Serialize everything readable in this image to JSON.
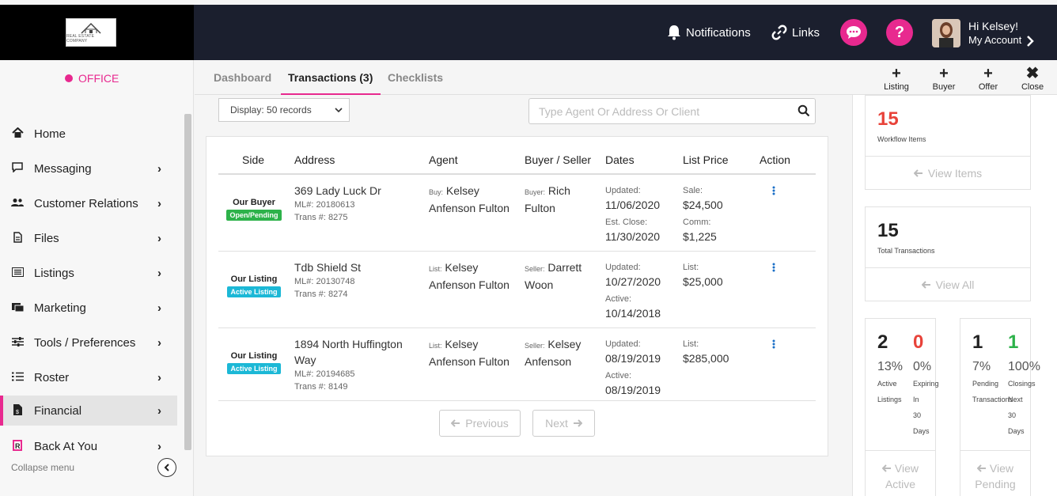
{
  "header": {
    "logo_text": "REAL ESTATE COMPANY",
    "notifications": "Notifications",
    "links": "Links",
    "help_glyph": "?",
    "user_greeting": "Hi Kelsey!",
    "user_account": "My Account"
  },
  "sidebar": {
    "office": "OFFICE",
    "items": [
      {
        "label": "Home",
        "icon": "home-icon"
      },
      {
        "label": "Messaging",
        "icon": "message-icon"
      },
      {
        "label": "Customer Relations",
        "icon": "users-icon"
      },
      {
        "label": "Files",
        "icon": "file-icon"
      },
      {
        "label": "Listings",
        "icon": "list-icon"
      },
      {
        "label": "Marketing",
        "icon": "marketing-icon"
      },
      {
        "label": "Tools / Preferences",
        "icon": "sliders-icon"
      },
      {
        "label": "Roster",
        "icon": "roster-icon"
      },
      {
        "label": "Financial",
        "icon": "financial-icon"
      },
      {
        "label": "Back At You",
        "icon": "bay-icon"
      }
    ],
    "collapse": "Collapse menu"
  },
  "tabs": {
    "dashboard": "Dashboard",
    "transactions": "Transactions (3)",
    "checklists": "Checklists"
  },
  "quick_actions": {
    "listing": "Listing",
    "buyer": "Buyer",
    "offer": "Offer",
    "close": "Close"
  },
  "controls": {
    "display": "Display: 50 records",
    "search_placeholder": "Type Agent Or Address Or Client"
  },
  "table": {
    "headers": {
      "side": "Side",
      "address": "Address",
      "agent": "Agent",
      "buyer_seller": "Buyer / Seller",
      "dates": "Dates",
      "list_price": "List Price",
      "action": "Action"
    },
    "rows": [
      {
        "side": "Our Buyer",
        "status": "Open/Pending",
        "status_color": "#2db24a",
        "address": "369 Lady Luck Dr",
        "ml": "ML#: 20180613",
        "trans": "Trans #: 8275",
        "agent_prefix": "Buy:",
        "agent": "Kelsey Anfenson Fulton",
        "party_prefix": "Buyer:",
        "party": "Rich Fulton",
        "date1_label": "Updated:",
        "date1": "11/06/2020",
        "date2_label": "Est. Close:",
        "date2": "11/30/2020",
        "price1_label": "Sale:",
        "price1": "$24,500",
        "price2_label": "Comm:",
        "price2": "$1,225"
      },
      {
        "side": "Our Listing",
        "status": "Active Listing",
        "status_color": "#1cb8d6",
        "address": "Tdb Shield St",
        "ml": "ML#: 20130748",
        "trans": "Trans #: 8274",
        "agent_prefix": "List:",
        "agent": "Kelsey Anfenson Fulton",
        "party_prefix": "Seller:",
        "party": "Darrett Woon",
        "date1_label": "Updated:",
        "date1": "10/27/2020",
        "date2_label": "Active:",
        "date2": "10/14/2018",
        "price1_label": "List:",
        "price1": "$25,000",
        "price2_label": "",
        "price2": ""
      },
      {
        "side": "Our Listing",
        "status": "Active Listing",
        "status_color": "#1cb8d6",
        "address": "1894 North Huffington Way",
        "ml": "ML#: 20194685",
        "trans": "Trans #: 8149",
        "agent_prefix": "List:",
        "agent": "Kelsey Anfenson Fulton",
        "party_prefix": "Seller:",
        "party": "Kelsey Anfenson",
        "date1_label": "Updated:",
        "date1": "08/19/2019",
        "date2_label": "Active:",
        "date2": "08/19/2019",
        "price1_label": "List:",
        "price1": "$285,000",
        "price2_label": "",
        "price2": ""
      }
    ],
    "prev": "Previous",
    "next": "Next"
  },
  "stats": {
    "workflow": {
      "value": "15",
      "label": "Workflow Items",
      "link": "View Items",
      "color": "#e8433a"
    },
    "transactions": {
      "value": "15",
      "label": "Total Transactions",
      "link": "View All"
    },
    "active": {
      "value1": "2",
      "value2": "0",
      "pct1": "13%",
      "pct2": "0%",
      "label1_lines": [
        "Active",
        "Listings"
      ],
      "label2_lines": [
        "Expiring",
        "In",
        "30",
        "Days"
      ],
      "link_lines": [
        "View",
        "Active"
      ],
      "color2": "#e8433a"
    },
    "pending": {
      "value1": "1",
      "value2": "1",
      "pct1": "7%",
      "pct2": "100%",
      "label1_lines": [
        "Pending",
        "Transactions"
      ],
      "label2_lines": [
        "Closings",
        "Next",
        "30",
        "Days"
      ],
      "link_lines": [
        "View",
        "Pending"
      ],
      "color2": "#2db24a"
    }
  }
}
